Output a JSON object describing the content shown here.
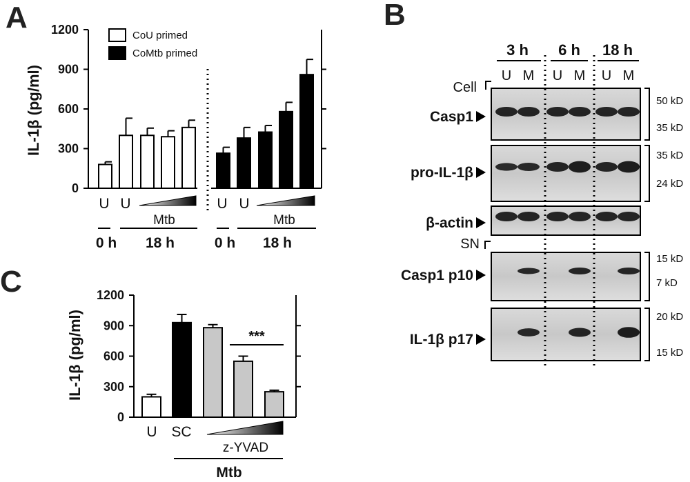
{
  "panel_letters": {
    "a": "A",
    "b": "B",
    "c": "C"
  },
  "chart_data": [
    {
      "panel": "A",
      "type": "bar",
      "ylabel": "IL-1β (pg/ml)",
      "ylim": [
        0,
        1200
      ],
      "yticks": [
        "0",
        "300",
        "600",
        "900",
        "1200"
      ],
      "legend": {
        "placement": "top-left",
        "entries": [
          "CoU primed",
          "CoMtb primed"
        ]
      },
      "series": [
        {
          "name": "CoU primed",
          "color": "#ffffff",
          "categories": [
            "U",
            "U",
            "",
            "",
            ""
          ],
          "values": [
            180,
            400,
            400,
            390,
            460
          ],
          "errors": [
            20,
            130,
            55,
            45,
            55
          ]
        },
        {
          "name": "CoMtb primed",
          "color": "#000000",
          "categories": [
            "U",
            "U",
            "",
            "",
            ""
          ],
          "values": [
            265,
            380,
            425,
            580,
            860
          ],
          "errors": [
            45,
            80,
            50,
            70,
            115
          ]
        }
      ],
      "cat_labels": [
        "U",
        "U",
        "U",
        "U"
      ],
      "gradient_label": "Mtb",
      "time_labels": [
        "0 h",
        "18 h",
        "0 h",
        "18 h"
      ]
    },
    {
      "panel": "C",
      "type": "bar",
      "ylabel": "IL-1β (pg/ml)",
      "ylim": [
        0,
        1200
      ],
      "yticks": [
        "0",
        "300",
        "600",
        "900",
        "1200"
      ],
      "categories": [
        "U",
        "SC",
        "",
        "",
        ""
      ],
      "values": [
        200,
        930,
        880,
        550,
        250
      ],
      "errors": [
        25,
        80,
        30,
        50,
        15
      ],
      "colors": [
        "#ffffff",
        "#000000",
        "#c8c8c8",
        "#c8c8c8",
        "#c8c8c8"
      ],
      "significance": "***",
      "gradient_label": "z-YVAD",
      "group_label": "Mtb"
    }
  ],
  "blot": {
    "timepoints": [
      "3 h",
      "6 h",
      "18 h"
    ],
    "lanes": [
      "U",
      "M",
      "U",
      "M",
      "U",
      "M"
    ],
    "cell_label": "Cell",
    "sn_label": "SN",
    "rows": [
      {
        "label": "Casp1",
        "markers": [
          "50 kD",
          "35 kD"
        ]
      },
      {
        "label": "pro-IL-1β",
        "markers": [
          "35 kD",
          "24 kD"
        ]
      },
      {
        "label": "β-actin",
        "markers": []
      },
      {
        "label": "Casp1 p10",
        "markers": [
          "15 kD",
          "7 kD"
        ]
      },
      {
        "label": "IL-1β p17",
        "markers": [
          "20 kD",
          "15 kD"
        ]
      }
    ]
  }
}
